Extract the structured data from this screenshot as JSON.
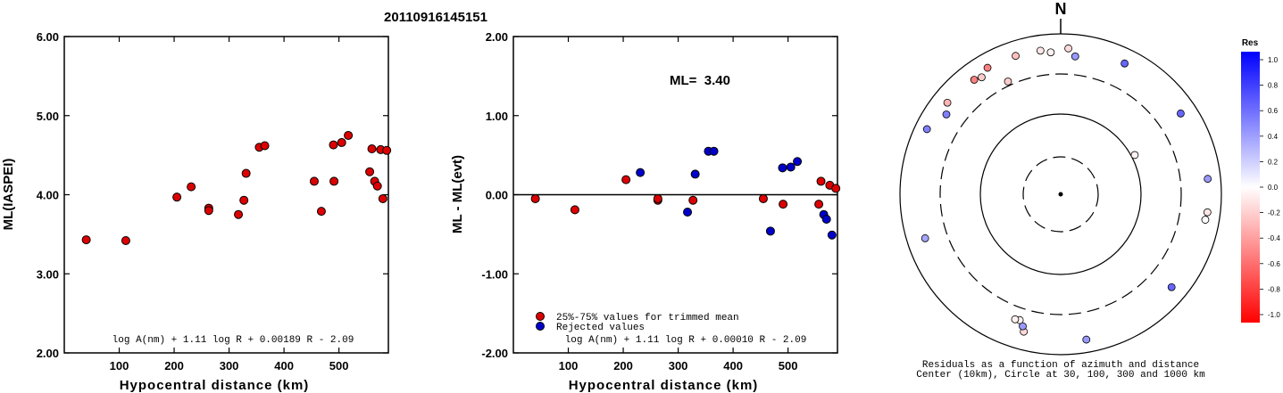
{
  "figure": {
    "title": "20110916145151"
  },
  "chart_data": [
    {
      "type": "scatter",
      "xlabel": "Hypocentral distance (km)",
      "ylabel": "ML(IASPEI)",
      "xlim": [
        0,
        590
      ],
      "ylim": [
        2.0,
        6.0
      ],
      "x_ticks": [
        100,
        200,
        300,
        400,
        500
      ],
      "y_ticks": [
        "2.00",
        "3.00",
        "4.00",
        "5.00",
        "6.00"
      ],
      "formula": "log A(nm) + 1.11 log R + 0.00189 R - 2.09",
      "grid": false,
      "marker_color": "#dd0000",
      "points": [
        {
          "x": 40,
          "y": 3.43
        },
        {
          "x": 112,
          "y": 3.42
        },
        {
          "x": 205,
          "y": 3.97
        },
        {
          "x": 231,
          "y": 4.1
        },
        {
          "x": 263,
          "y": 3.83
        },
        {
          "x": 263,
          "y": 3.8
        },
        {
          "x": 317,
          "y": 3.75
        },
        {
          "x": 327,
          "y": 3.93
        },
        {
          "x": 331,
          "y": 4.27
        },
        {
          "x": 355,
          "y": 4.6
        },
        {
          "x": 365,
          "y": 4.62
        },
        {
          "x": 455,
          "y": 4.17
        },
        {
          "x": 468,
          "y": 3.79
        },
        {
          "x": 490,
          "y": 4.63
        },
        {
          "x": 491,
          "y": 4.17
        },
        {
          "x": 505,
          "y": 4.66
        },
        {
          "x": 517,
          "y": 4.75
        },
        {
          "x": 556,
          "y": 4.29
        },
        {
          "x": 560,
          "y": 4.58
        },
        {
          "x": 565,
          "y": 4.17
        },
        {
          "x": 570,
          "y": 4.11
        },
        {
          "x": 576,
          "y": 4.57
        },
        {
          "x": 580,
          "y": 3.95
        },
        {
          "x": 587,
          "y": 4.56
        }
      ]
    },
    {
      "type": "scatter",
      "xlabel": "Hypocentral distance (km)",
      "ylabel": "ML - ML(evt)",
      "xlim": [
        0,
        590
      ],
      "ylim": [
        -2.0,
        2.0
      ],
      "x_ticks": [
        100,
        200,
        300,
        400,
        500
      ],
      "y_ticks": [
        "-2.00",
        "-1.00",
        "0.00",
        "1.00",
        "2.00"
      ],
      "annotation": "ML=  3.40",
      "formula": "log A(nm) + 1.11 log R + 0.00010 R - 2.09",
      "zero_line": true,
      "legend": {
        "placement": "bottom-left",
        "items": [
          {
            "label": "25%-75% values for trimmed mean",
            "color": "#dd0000"
          },
          {
            "label": "Rejected values",
            "color": "#0000cc"
          }
        ]
      },
      "series": [
        {
          "name": "25%-75% values for trimmed mean",
          "color": "#dd0000",
          "points": [
            {
              "x": 40,
              "y": -0.05
            },
            {
              "x": 112,
              "y": -0.19
            },
            {
              "x": 205,
              "y": 0.19
            },
            {
              "x": 263,
              "y": -0.07
            },
            {
              "x": 263,
              "y": -0.05
            },
            {
              "x": 327,
              "y": -0.07
            },
            {
              "x": 455,
              "y": -0.05
            },
            {
              "x": 491,
              "y": -0.12
            },
            {
              "x": 556,
              "y": -0.12
            },
            {
              "x": 560,
              "y": 0.17
            },
            {
              "x": 576,
              "y": 0.12
            },
            {
              "x": 587,
              "y": 0.08
            }
          ]
        },
        {
          "name": "Rejected values",
          "color": "#0000cc",
          "points": [
            {
              "x": 231,
              "y": 0.28
            },
            {
              "x": 317,
              "y": -0.22
            },
            {
              "x": 331,
              "y": 0.26
            },
            {
              "x": 355,
              "y": 0.55
            },
            {
              "x": 365,
              "y": 0.55
            },
            {
              "x": 468,
              "y": -0.46
            },
            {
              "x": 490,
              "y": 0.34
            },
            {
              "x": 505,
              "y": 0.35
            },
            {
              "x": 517,
              "y": 0.42
            },
            {
              "x": 565,
              "y": -0.25
            },
            {
              "x": 570,
              "y": -0.31
            },
            {
              "x": 580,
              "y": -0.51
            }
          ]
        }
      ]
    },
    {
      "type": "scatter",
      "subtype": "polar-residuals",
      "north_label": "N",
      "caption_line1": "Residuals as a function of azimuth and distance",
      "caption_line2": "Center (10km), Circle at 30, 100, 300 and 1000 km",
      "rings_km": [
        30,
        100,
        300,
        1000
      ],
      "colorbar": {
        "title": "Res",
        "ticks": [
          "1.0",
          "0.8",
          "0.6",
          "0.4",
          "0.2",
          "0.0",
          "-0.2",
          "-0.4",
          "-0.6",
          "-0.8",
          "-1.0"
        ],
        "positive_color": "#0000ff",
        "negative_color": "#ff0000"
      },
      "points": [
        {
          "az": 330,
          "dist": 650,
          "res": -0.5
        },
        {
          "az": 342,
          "dist": 640,
          "res": -0.25
        },
        {
          "az": 352,
          "dist": 630,
          "res": -0.1
        },
        {
          "az": 356,
          "dist": 580,
          "res": -0.05
        },
        {
          "az": 3,
          "dist": 650,
          "res": -0.15
        },
        {
          "az": 6,
          "dist": 520,
          "res": 0.4
        },
        {
          "az": 323,
          "dist": 600,
          "res": -0.5
        },
        {
          "az": 326,
          "dist": 560,
          "res": -0.2
        },
        {
          "az": 309,
          "dist": 640,
          "res": -0.3
        },
        {
          "az": 296,
          "dist": 700,
          "res": 0.5
        },
        {
          "az": 305,
          "dist": 530,
          "res": 0.5
        },
        {
          "az": 335,
          "dist": 340,
          "res": -0.2
        },
        {
          "az": 26,
          "dist": 640,
          "res": 0.6
        },
        {
          "az": 56,
          "dist": 620,
          "res": 0.6
        },
        {
          "az": 84,
          "dist": 680,
          "res": 0.4
        },
        {
          "az": 97,
          "dist": 680,
          "res": -0.1
        },
        {
          "az": 100,
          "dist": 660,
          "res": 0.0
        },
        {
          "az": 130,
          "dist": 620,
          "res": 0.6
        },
        {
          "az": 170,
          "dist": 680,
          "res": 0.4
        },
        {
          "az": 195,
          "dist": 580,
          "res": -0.15
        },
        {
          "az": 196,
          "dist": 500,
          "res": 0.4
        },
        {
          "az": 198,
          "dist": 430,
          "res": -0.05
        },
        {
          "az": 200,
          "dist": 440,
          "res": -0.05
        },
        {
          "az": 252,
          "dist": 580,
          "res": 0.35
        },
        {
          "az": 62,
          "dist": 110,
          "res": -0.05
        }
      ]
    }
  ]
}
